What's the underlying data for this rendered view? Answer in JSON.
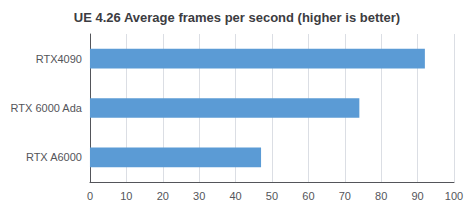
{
  "chart_data": {
    "type": "bar",
    "orientation": "horizontal",
    "title": "UE 4.26 Average frames per second (higher is better)",
    "categories": [
      "RTX4090",
      "RTX 6000 Ada",
      "RTX A6000"
    ],
    "values": [
      92,
      74,
      47
    ],
    "color": "#5B9BD5",
    "xlim": [
      0,
      100
    ],
    "xticks": [
      0,
      10,
      20,
      30,
      40,
      50,
      60,
      70,
      80,
      90,
      100
    ],
    "grid": true
  }
}
